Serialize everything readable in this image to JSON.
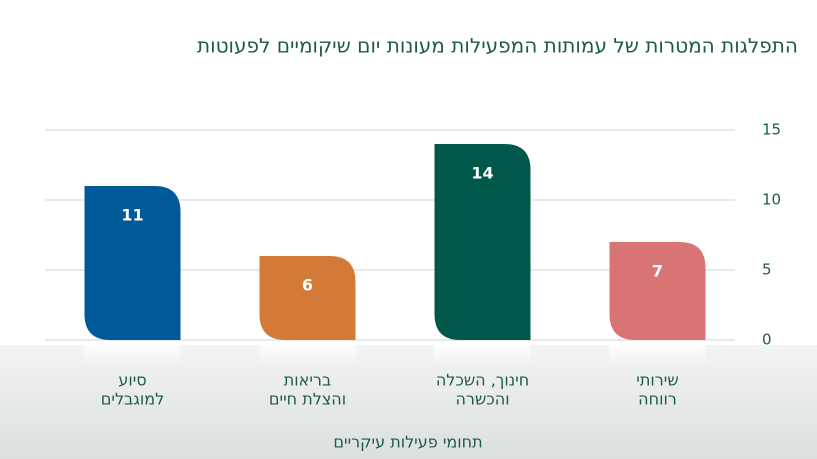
{
  "chart_data": {
    "type": "bar",
    "title": "התפלגות המטרות של עמותות המפעילות מעונות יום שיקומיים לפעוטות",
    "x_label": "תחומי פעילות עיקריים",
    "categories": [
      [
        "שירותי",
        "רווחה"
      ],
      [
        "חינוך, השכלה",
        "והכשרה"
      ],
      [
        "בריאות",
        "והצלת חיים"
      ],
      [
        "סיוע",
        "למוגבלים"
      ]
    ],
    "values": [
      7,
      14,
      6,
      11
    ],
    "colors": [
      "#d97474",
      "#00584a",
      "#d47a38",
      "#005a9a"
    ],
    "ylim": [
      0,
      15
    ],
    "yticks": [
      0,
      5,
      10,
      15
    ],
    "grid": true
  }
}
